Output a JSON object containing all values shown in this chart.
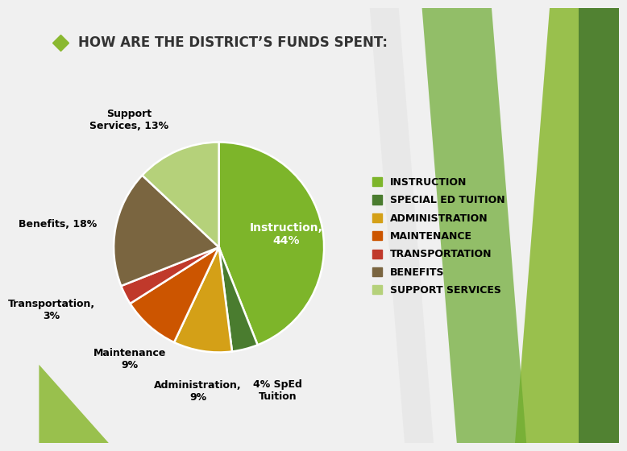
{
  "title": "HOW ARE THE DISTRICT’S FUNDS SPENT:",
  "title_bullet_color": "#8ab830",
  "background_color": "#f0f0f0",
  "slices": [
    {
      "label": "Instruction,\n44%",
      "value": 44,
      "color": "#7db52a",
      "legend": "INSTRUCTION"
    },
    {
      "label": "4% SpEd\nTuition",
      "value": 4,
      "color": "#4a7c2f",
      "legend": "SPECIAL ED TUITION"
    },
    {
      "label": "Administration,\n9%",
      "value": 9,
      "color": "#d4a017",
      "legend": "ADMINISTRATION"
    },
    {
      "label": "Maintenance\n9%",
      "value": 9,
      "color": "#cc5500",
      "legend": "MAINTENANCE"
    },
    {
      "label": "Transportation,\n3%",
      "value": 3,
      "color": "#c0392b",
      "legend": "TRANSPORTATION"
    },
    {
      "label": "Benefits, 18%",
      "value": 18,
      "color": "#7a6540",
      "legend": "BENEFITS"
    },
    {
      "label": "Support\nServices, 13%",
      "value": 13,
      "color": "#b5d17a",
      "legend": "SUPPORT SERVICES"
    }
  ],
  "legend_colors": [
    "#7db52a",
    "#4a7c2f",
    "#d4a017",
    "#cc5500",
    "#c0392b",
    "#7a6540",
    "#b5d17a"
  ],
  "legend_labels": [
    "INSTRUCTION",
    "SPECIAL ED TUITION",
    "ADMINISTRATION",
    "MAINTENANCE",
    "TRANSPORTATION",
    "BENEFITS",
    "SUPPORT SERVICES"
  ],
  "label_fontsize": 9,
  "title_fontsize": 12,
  "legend_fontsize": 9
}
